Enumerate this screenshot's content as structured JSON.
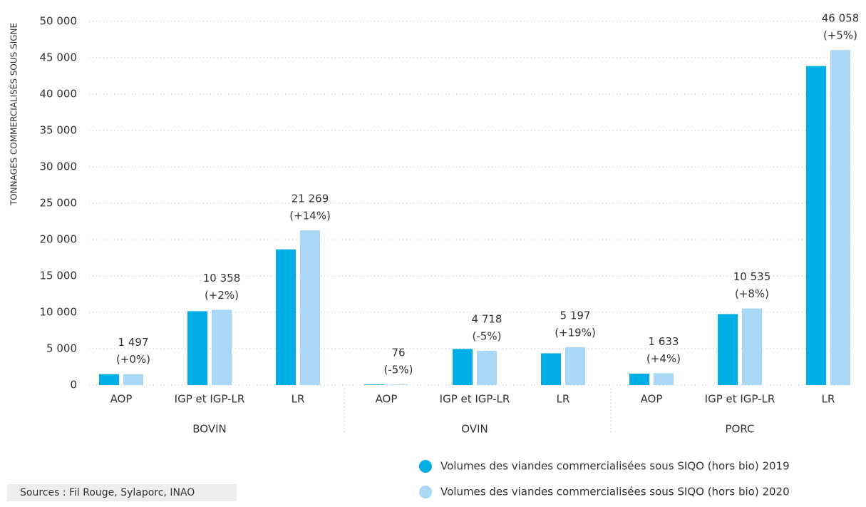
{
  "chart_data": {
    "type": "bar",
    "y_label": "TONNAGES COMMERCIALISÉS SOUS SIGNE",
    "categories": [
      "AOP",
      "IGP et IGP-LR",
      "LR",
      "AOP",
      "IGP et IGP-LR",
      "LR",
      "AOP",
      "IGP et IGP-LR",
      "LR"
    ],
    "groups": [
      "BOVIN",
      "OVIN",
      "PORC"
    ],
    "series": [
      {
        "name": "Volumes des viandes commercialisées sous SIQO (hors bio) 2019",
        "color": "#00aee6",
        "values": [
          1497,
          10155,
          18657,
          80,
          4966,
          4367,
          1570,
          9755,
          43865
        ]
      },
      {
        "name": "Volumes des viandes commercialisées sous SIQO (hors bio) 2020",
        "color": "#a8d8f5",
        "values": [
          1497,
          10358,
          21269,
          76,
          4718,
          5197,
          1633,
          10535,
          46058
        ],
        "value_labels": [
          "1 497",
          "10 358",
          "21 269",
          "76",
          "4 718",
          "5 197",
          "1 633",
          "10 535",
          "46 058"
        ],
        "change_labels": [
          "(+0%)",
          "(+2%)",
          "(+14%)",
          "(-5%)",
          "(-5%)",
          "(+19%)",
          "(+4%)",
          "(+8%)",
          "(+5%)"
        ]
      }
    ],
    "ylim": [
      0,
      50000
    ],
    "yticks": [
      0,
      {
        "value": 5000,
        "label": "5 000"
      },
      {
        "value": 10000,
        "label": "10 000"
      },
      {
        "value": 15000,
        "label": "15 000"
      },
      {
        "value": 20000,
        "label": "20 000"
      },
      {
        "value": 25000,
        "label": "25 000"
      },
      {
        "value": 30000,
        "label": "30 000"
      },
      {
        "value": 35000,
        "label": "35 000"
      },
      {
        "value": 40000,
        "label": "40 000"
      },
      {
        "value": 45000,
        "label": "45 000"
      },
      {
        "value": 50000,
        "label": "50 000"
      }
    ],
    "grid": true,
    "source": "Sources : Fil Rouge, Sylaporc, INAO"
  }
}
